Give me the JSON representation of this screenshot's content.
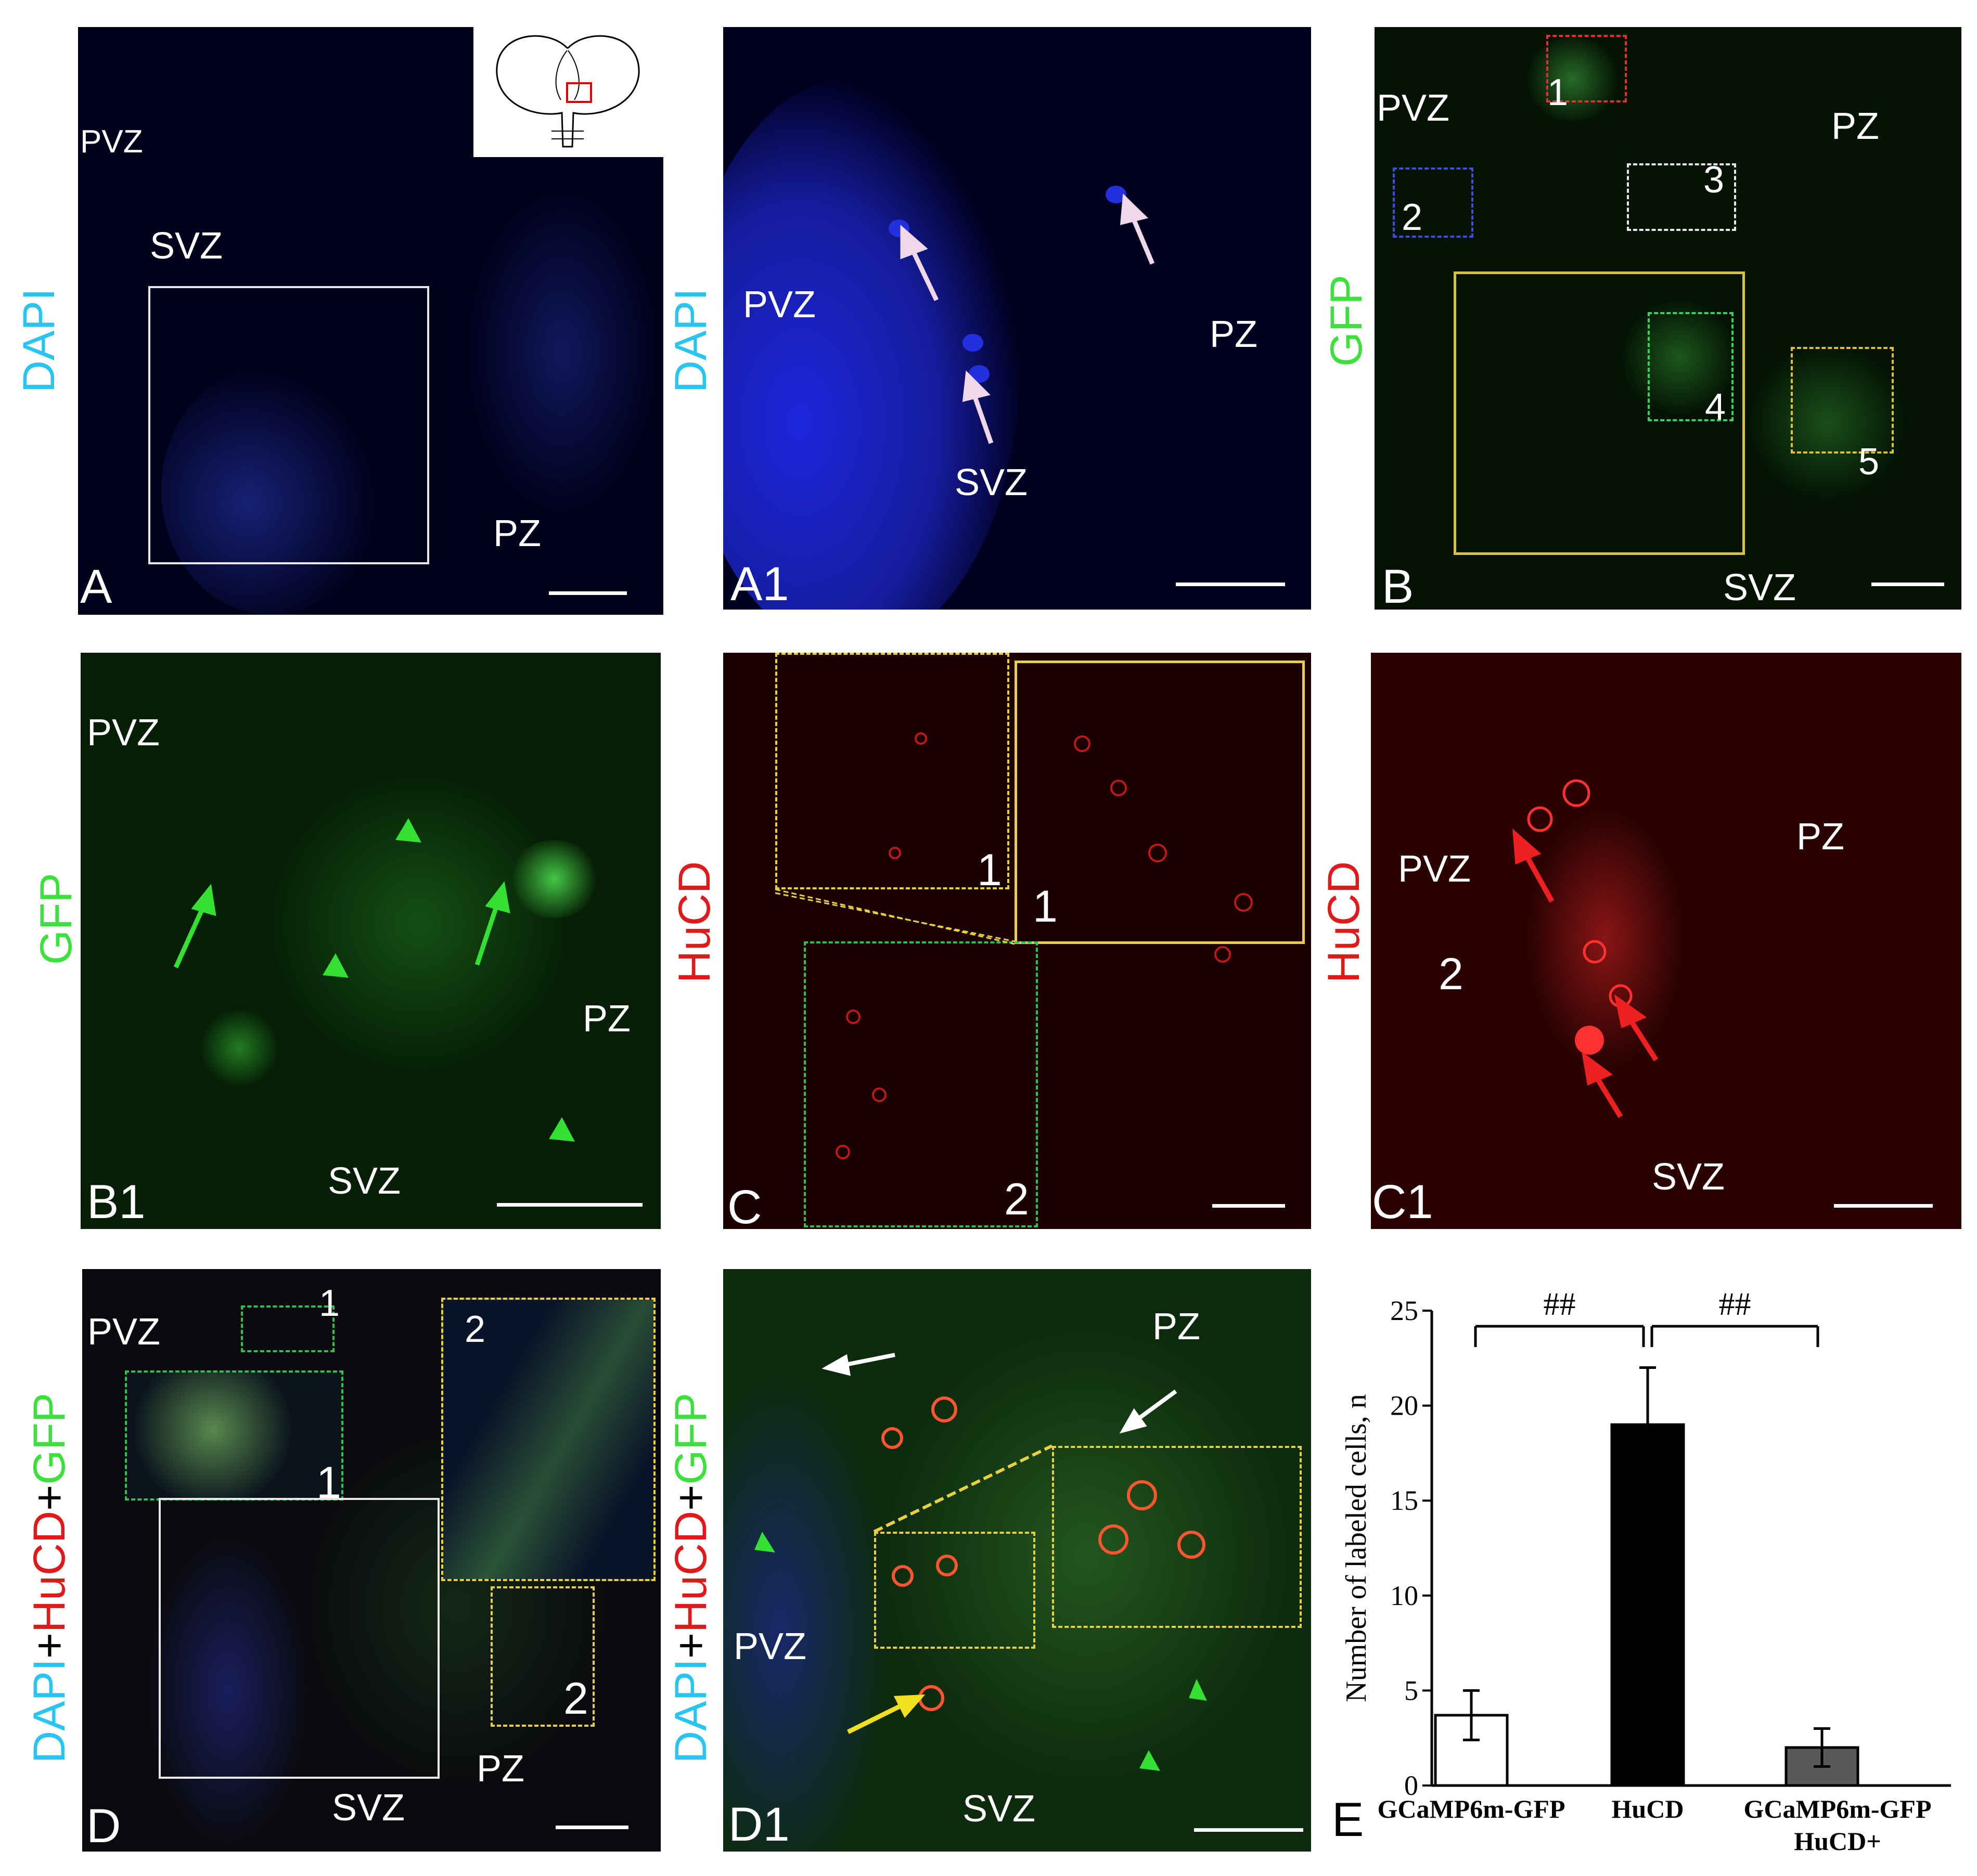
{
  "zones": {
    "pvz": "PVZ",
    "svz": "SVZ",
    "pz": "PZ"
  },
  "panels": {
    "A": {
      "letter": "A",
      "stain": "DAPI"
    },
    "A1": {
      "letter": "A1",
      "stain": "DAPI"
    },
    "B": {
      "letter": "B",
      "stain": "GFP",
      "inset_numbers": [
        "1",
        "2",
        "3",
        "4",
        "5"
      ]
    },
    "B1": {
      "letter": "B1",
      "stain": "GFP"
    },
    "C": {
      "letter": "C",
      "stain": "HuCD",
      "inset_numbers": [
        "1",
        "1",
        "2"
      ]
    },
    "C1": {
      "letter": "C1",
      "stain": "HuCD",
      "region_number": "2"
    },
    "D": {
      "letter": "D",
      "inset_numbers": [
        "1",
        "1",
        "2",
        "2"
      ]
    },
    "D1": {
      "letter": "D1"
    },
    "E": {
      "letter": "E"
    }
  },
  "merge_label": {
    "dapi": "DAPI",
    "plus1": "+",
    "hucd": "HuCD",
    "plus2": "+",
    "gfp": "GFP"
  },
  "colors": {
    "dapi": "#29c4f0",
    "gfp": "#3de03d",
    "hucd": "#e01a1a",
    "bar1": "#ffffff",
    "bar2": "#000000",
    "bar3": "#595959"
  },
  "chart_data": {
    "type": "bar",
    "categories": [
      "GCaMP6m-GFP",
      "HuCD",
      "GCaMP6m-GFP HuCD+"
    ],
    "category_lines": [
      [
        "GCaMP6m-GFP"
      ],
      [
        "HuCD"
      ],
      [
        "GCaMP6m-GFP",
        "HuCD+"
      ]
    ],
    "values": [
      3.7,
      19.0,
      2.0
    ],
    "errors": [
      1.3,
      3.0,
      1.0
    ],
    "ylabel": "Number of labeled cells, n",
    "ylim": [
      0,
      25
    ],
    "yticks": [
      0,
      5,
      10,
      15,
      20,
      25
    ],
    "significance": [
      {
        "from": 0,
        "to": 1,
        "label": "##"
      },
      {
        "from": 1,
        "to": 2,
        "label": "##"
      }
    ],
    "grid": false
  }
}
